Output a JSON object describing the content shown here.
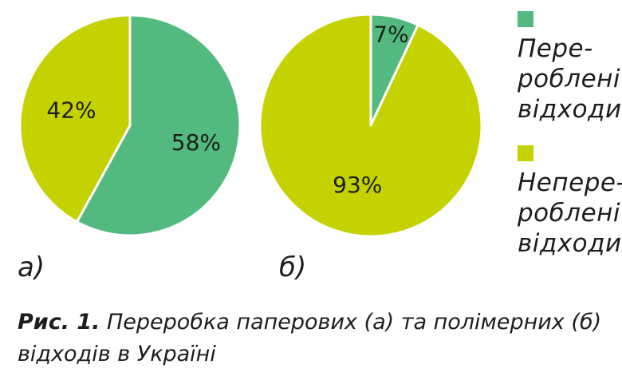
{
  "chart_data": [
    {
      "type": "pie",
      "label": "а)",
      "slices": [
        {
          "name": "Перероблені відходи",
          "value": 58,
          "label": "58%",
          "color": "#52b97f"
        },
        {
          "name": "Неперероблені відходи",
          "value": 42,
          "label": "42%",
          "color": "#c4d200"
        }
      ]
    },
    {
      "type": "pie",
      "label": "б)",
      "slices": [
        {
          "name": "Перероблені відходи",
          "value": 7,
          "label": "7%",
          "color": "#52b97f"
        },
        {
          "name": "Неперероблені відходи",
          "value": 93,
          "label": "93%",
          "color": "#c4d200"
        }
      ]
    }
  ],
  "legend": {
    "items": [
      {
        "text": "Пере-\nроблені\nвідходи",
        "color": "#52b97f"
      },
      {
        "text": "Непере-\nроблені\nвідходи",
        "color": "#c4d200"
      }
    ]
  },
  "caption": {
    "label": "Рис. 1.",
    "text": " Переробка паперових (а) та полімерних (б) відходів в Україні"
  }
}
